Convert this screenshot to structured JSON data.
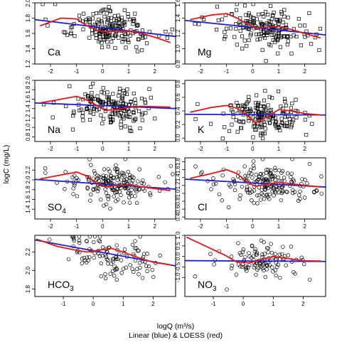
{
  "figure": {
    "ylabel": "logC (mg/L)",
    "xlabel": "logQ (m³/s)",
    "caption": "Linear (blue) & LOESS (red)",
    "colors": {
      "linear": "#1f1fd6",
      "loess": "#e01818",
      "points": "#000000",
      "frame": "#000000"
    }
  },
  "chart_data": [
    {
      "type": "scatter",
      "label": "Ca",
      "label_main": "Ca",
      "label_sub": "",
      "marker": "square",
      "xlim": [
        -2.6,
        2.8
      ],
      "ylim": [
        1.2,
        2.0
      ],
      "xticks": [
        -2,
        -1,
        0,
        1,
        2
      ],
      "yticks": [
        1.2,
        1.4,
        1.6,
        1.8,
        2.0
      ],
      "x_tick_labels_shown": true,
      "linear_fit": {
        "x": [
          -2.6,
          2.8
        ],
        "y": [
          1.78,
          1.56
        ]
      },
      "loess_fit": {
        "x": [
          -2.4,
          -1.6,
          -1.0,
          -0.6,
          -0.2,
          0.1,
          0.5,
          1.0,
          1.5,
          2.0,
          2.6
        ],
        "y": [
          1.7,
          1.8,
          1.79,
          1.7,
          1.64,
          1.62,
          1.63,
          1.63,
          1.6,
          1.55,
          1.48
        ]
      },
      "n_points": 180,
      "points_seed": 11,
      "x_center": 0.4,
      "y_center": 1.66,
      "y_spread": 0.12
    },
    {
      "type": "scatter",
      "label": "Mg",
      "label_main": "Mg",
      "label_sub": "",
      "marker": "square",
      "xlim": [
        -2.6,
        2.8
      ],
      "ylim": [
        0.8,
        1.6
      ],
      "xticks": [
        -2,
        -1,
        0,
        1,
        2
      ],
      "yticks": [
        0.8,
        1.0,
        1.2,
        1.4,
        1.6
      ],
      "x_tick_labels_shown": true,
      "linear_fit": {
        "x": [
          -2.6,
          2.8
        ],
        "y": [
          1.37,
          1.18
        ]
      },
      "loess_fit": {
        "x": [
          -2.4,
          -1.6,
          -1.0,
          -0.6,
          -0.2,
          0.1,
          0.5,
          1.0,
          1.5,
          2.0,
          2.6
        ],
        "y": [
          1.38,
          1.44,
          1.46,
          1.4,
          1.32,
          1.27,
          1.28,
          1.29,
          1.25,
          1.2,
          1.14
        ]
      },
      "n_points": 180,
      "points_seed": 23,
      "x_center": 0.4,
      "y_center": 1.28,
      "y_spread": 0.12
    },
    {
      "type": "scatter",
      "label": "Na",
      "label_main": "Na",
      "label_sub": "",
      "marker": "square",
      "xlim": [
        -2.6,
        2.8
      ],
      "ylim": [
        0.7,
        2.0
      ],
      "xticks": [
        -2,
        -1,
        0,
        1,
        2
      ],
      "yticks": [
        0.8,
        1.0,
        1.2,
        1.4,
        1.6,
        1.8,
        2.0
      ],
      "x_tick_labels_shown": true,
      "linear_fit": {
        "x": [
          -2.6,
          2.8
        ],
        "y": [
          1.52,
          1.4
        ]
      },
      "loess_fit": {
        "x": [
          -2.4,
          -1.6,
          -1.0,
          -0.6,
          -0.2,
          0.1,
          0.5,
          1.0,
          1.5,
          2.0,
          2.6
        ],
        "y": [
          1.52,
          1.6,
          1.66,
          1.58,
          1.46,
          1.36,
          1.38,
          1.42,
          1.45,
          1.44,
          1.43
        ]
      },
      "n_points": 180,
      "points_seed": 37,
      "x_center": 0.4,
      "y_center": 1.42,
      "y_spread": 0.2
    },
    {
      "type": "scatter",
      "label": "K",
      "label_main": "K",
      "label_sub": "",
      "marker": "square",
      "xlim": [
        -2.6,
        2.8
      ],
      "ylim": [
        -0.05,
        0.85
      ],
      "xticks": [
        -2,
        -1,
        0,
        1,
        2
      ],
      "yticks": [
        0.0,
        0.2,
        0.4,
        0.6,
        0.8
      ],
      "x_tick_labels_shown": true,
      "linear_fit": {
        "x": [
          -2.6,
          2.8
        ],
        "y": [
          0.35,
          0.34
        ]
      },
      "loess_fit": {
        "x": [
          -2.4,
          -1.6,
          -1.0,
          -0.6,
          -0.2,
          0.1,
          0.5,
          1.0,
          1.5,
          2.0,
          2.6
        ],
        "y": [
          0.38,
          0.45,
          0.48,
          0.44,
          0.33,
          0.22,
          0.3,
          0.42,
          0.4,
          0.36,
          0.34
        ]
      },
      "n_points": 180,
      "points_seed": 41,
      "x_center": 0.4,
      "y_center": 0.33,
      "y_spread": 0.14
    },
    {
      "type": "scatter",
      "label": "SO4",
      "label_main": "SO",
      "label_sub": "4",
      "marker": "circle",
      "xlim": [
        -2.6,
        2.8
      ],
      "ylim": [
        1.2,
        2.45
      ],
      "xticks": [
        -2,
        -1,
        0,
        1,
        2
      ],
      "yticks": [
        1.4,
        1.6,
        1.8,
        2.0,
        2.2
      ],
      "x_tick_labels_shown": true,
      "linear_fit": {
        "x": [
          -2.6,
          2.8
        ],
        "y": [
          2.01,
          1.81
        ]
      },
      "loess_fit": {
        "x": [
          -2.4,
          -1.6,
          -1.0,
          -0.6,
          -0.2,
          0.1,
          0.5,
          1.0,
          1.5,
          2.0,
          2.6
        ],
        "y": [
          2.02,
          2.1,
          2.16,
          2.08,
          1.92,
          1.86,
          1.88,
          1.9,
          1.86,
          1.82,
          1.78
        ]
      },
      "n_points": 180,
      "points_seed": 53,
      "x_center": 0.4,
      "y_center": 1.9,
      "y_spread": 0.2
    },
    {
      "type": "scatter",
      "label": "Cl",
      "label_main": "Cl",
      "label_sub": "",
      "marker": "circle",
      "xlim": [
        -2.6,
        2.8
      ],
      "ylim": [
        0.35,
        1.9
      ],
      "xticks": [
        -2,
        -1,
        0,
        1,
        2
      ],
      "yticks": [
        0.4,
        0.6,
        0.8,
        1.0,
        1.2,
        1.4,
        1.6,
        1.8
      ],
      "x_tick_labels_shown": true,
      "linear_fit": {
        "x": [
          -2.6,
          2.8
        ],
        "y": [
          1.36,
          1.16
        ]
      },
      "loess_fit": {
        "x": [
          -2.4,
          -1.6,
          -1.0,
          -0.6,
          -0.2,
          0.1,
          0.5,
          1.0,
          1.5,
          2.0,
          2.6
        ],
        "y": [
          1.38,
          1.5,
          1.6,
          1.5,
          1.28,
          1.18,
          1.22,
          1.28,
          1.24,
          1.2,
          1.16
        ]
      },
      "n_points": 180,
      "points_seed": 67,
      "x_center": 0.4,
      "y_center": 1.24,
      "y_spread": 0.22
    },
    {
      "type": "scatter",
      "label": "HCO3",
      "label_main": "HCO",
      "label_sub": "3",
      "marker": "circle",
      "xlim": [
        -1.95,
        2.75
      ],
      "ylim": [
        1.72,
        2.38
      ],
      "xticks": [
        -1,
        0,
        1,
        2
      ],
      "yticks": [
        1.8,
        2.0,
        2.2
      ],
      "x_tick_labels_shown": true,
      "linear_fit": {
        "x": [
          -1.95,
          2.75
        ],
        "y": [
          2.33,
          2.05
        ]
      },
      "loess_fit": {
        "x": [
          -1.9,
          -1.2,
          -0.6,
          -0.2,
          0.2,
          0.6,
          1.0,
          1.5,
          2.0,
          2.6
        ],
        "y": [
          2.34,
          2.26,
          2.22,
          2.2,
          2.22,
          2.24,
          2.2,
          2.14,
          2.09,
          2.06
        ]
      },
      "n_points": 110,
      "points_seed": 79,
      "x_center": 0.6,
      "y_center": 2.16,
      "y_spread": 0.1
    },
    {
      "type": "scatter",
      "label": "NO3",
      "label_main": "NO",
      "label_sub": "3",
      "marker": "circle",
      "xlim": [
        -1.95,
        2.75
      ],
      "ylim": [
        -1.9,
        1.0
      ],
      "xticks": [
        -1,
        0,
        1,
        2
      ],
      "yticks": [
        -1.0,
        -0.5,
        0.0,
        0.5,
        1.0
      ],
      "x_tick_labels_shown": true,
      "linear_fit": {
        "x": [
          -1.95,
          2.75
        ],
        "y": [
          -0.2,
          -0.24
        ]
      },
      "loess_fit": {
        "x": [
          -1.9,
          -1.2,
          -0.6,
          -0.2,
          0.2,
          0.6,
          1.0,
          1.5,
          2.0,
          2.6
        ],
        "y": [
          0.92,
          0.45,
          0.05,
          -0.28,
          -0.3,
          -0.15,
          0.0,
          -0.1,
          -0.2,
          -0.22
        ]
      },
      "n_points": 110,
      "points_seed": 97,
      "x_center": 0.6,
      "y_center": -0.25,
      "y_spread": 0.45
    }
  ]
}
